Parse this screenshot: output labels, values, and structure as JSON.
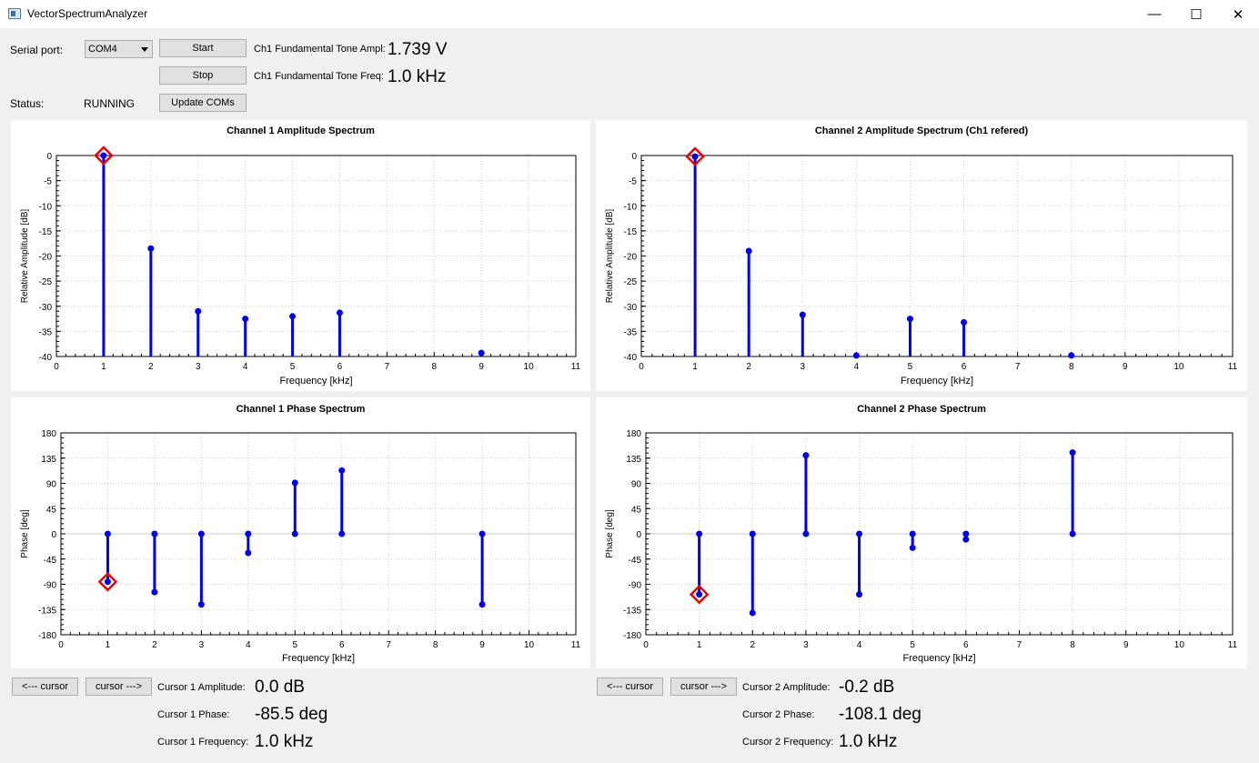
{
  "window": {
    "title": "VectorSpectrumAnalyzer",
    "min_glyph": "—",
    "max_glyph": "☐",
    "close_glyph": "✕",
    "icon": "app-window-icon"
  },
  "controls": {
    "serial_port_label": "Serial port:",
    "serial_port_value": "COM4",
    "start_label": "Start",
    "stop_label": "Stop",
    "update_coms_label": "Update COMs",
    "status_label": "Status:",
    "status_value": "RUNNING",
    "ampl_label": "Ch1 Fundamental Tone Ampl:",
    "ampl_value": "1.739 V",
    "freq_label": "Ch1 Fundamental Tone Freq:",
    "freq_value": "1.0 kHz"
  },
  "cursor1": {
    "left_label": "<--- cursor",
    "right_label": "cursor --->",
    "amplitude_label": "Cursor 1 Amplitude:",
    "amplitude_value": "0.0 dB",
    "phase_label": "Cursor 1 Phase:",
    "phase_value": "-85.5 deg",
    "frequency_label": "Cursor 1 Frequency:",
    "frequency_value": "1.0 kHz"
  },
  "cursor2": {
    "left_label": "<--- cursor",
    "right_label": "cursor --->",
    "amplitude_label": "Cursor 2 Amplitude:",
    "amplitude_value": "-0.2 dB",
    "phase_label": "Cursor 2 Phase:",
    "phase_value": "-108.1 deg",
    "frequency_label": "Cursor 2 Frequency:",
    "frequency_value": "1.0 kHz"
  },
  "colors": {
    "stem": "#0000ee",
    "cursor_marker": "#ee0000",
    "grid": "#cfcfcf",
    "panel_bg": "#ffffff",
    "window_bg": "#f0f0f0"
  },
  "chart_data": [
    {
      "type": "stem",
      "title": "Channel 1 Amplitude Spectrum",
      "xlabel": "Frequency [kHz]",
      "ylabel": "Relative Amplitude [dB]",
      "xlim": [
        0,
        11
      ],
      "ylim": [
        -40,
        0
      ],
      "xticks": [
        0,
        1,
        2,
        3,
        4,
        5,
        6,
        7,
        8,
        9,
        10,
        11
      ],
      "yticks": [
        0,
        -5,
        -10,
        -15,
        -20,
        -25,
        -30,
        -35,
        -40
      ],
      "grid": true,
      "baseline": -40,
      "x": [
        1,
        2,
        3,
        4,
        5,
        6,
        9
      ],
      "y": [
        0.0,
        -18.5,
        -31,
        -32.5,
        -32,
        -31.3,
        -39.3
      ],
      "cursor": {
        "x": 1,
        "y": 0.0
      }
    },
    {
      "type": "stem",
      "title": "Channel 2 Amplitude Spectrum (Ch1 refered)",
      "xlabel": "Frequency [kHz]",
      "ylabel": "Relative Amplitude [dB]",
      "xlim": [
        0,
        11
      ],
      "ylim": [
        -40,
        0
      ],
      "xticks": [
        0,
        1,
        2,
        3,
        4,
        5,
        6,
        7,
        8,
        9,
        10,
        11
      ],
      "yticks": [
        0,
        -5,
        -10,
        -15,
        -20,
        -25,
        -30,
        -35,
        -40
      ],
      "grid": true,
      "baseline": -40,
      "x": [
        1,
        2,
        3,
        4,
        5,
        6,
        8
      ],
      "y": [
        -0.2,
        -19,
        -31.7,
        -39.8,
        -32.5,
        -33.2,
        -39.8
      ],
      "cursor": {
        "x": 1,
        "y": -0.2
      }
    },
    {
      "type": "stem",
      "title": "Channel 1 Phase Spectrum",
      "xlabel": "Frequency [kHz]",
      "ylabel": "Phase [deg]",
      "xlim": [
        0,
        11
      ],
      "ylim": [
        -180,
        180
      ],
      "xticks": [
        0,
        1,
        2,
        3,
        4,
        5,
        6,
        7,
        8,
        9,
        10,
        11
      ],
      "yticks": [
        180,
        135,
        90,
        45,
        0,
        -45,
        -90,
        -135,
        -180
      ],
      "grid": true,
      "baseline": 0,
      "x": [
        1,
        2,
        3,
        4,
        5,
        6,
        9
      ],
      "y": [
        -85.5,
        -104,
        -126,
        -34,
        91,
        113,
        -126
      ],
      "cursor": {
        "x": 1,
        "y": -85.5
      }
    },
    {
      "type": "stem",
      "title": "Channel 2 Phase Spectrum",
      "xlabel": "Frequency [kHz]",
      "ylabel": "Phase [deg]",
      "xlim": [
        0,
        11
      ],
      "ylim": [
        -180,
        180
      ],
      "xticks": [
        0,
        1,
        2,
        3,
        4,
        5,
        6,
        7,
        8,
        9,
        10,
        11
      ],
      "yticks": [
        180,
        135,
        90,
        45,
        0,
        -45,
        -90,
        -135,
        -180
      ],
      "grid": true,
      "baseline": 0,
      "x": [
        1,
        2,
        3,
        4,
        5,
        6,
        8
      ],
      "y": [
        -108.1,
        -141,
        140,
        -108,
        -25,
        -10,
        145
      ],
      "cursor": {
        "x": 1,
        "y": -108.1
      }
    }
  ]
}
